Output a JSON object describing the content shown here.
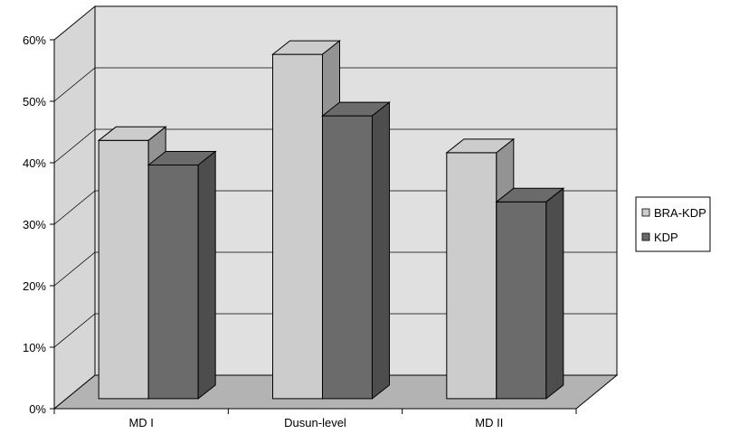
{
  "chart_data": {
    "type": "bar",
    "categories": [
      "MD I",
      "Dusun-level",
      "MD II"
    ],
    "series": [
      {
        "name": "BRA-KDP",
        "values": [
          42,
          56,
          40
        ],
        "color": "#cccccc"
      },
      {
        "name": "KDP",
        "values": [
          38,
          46,
          32
        ],
        "color": "#6b6b6b"
      }
    ],
    "ylim": [
      0,
      60
    ],
    "yticks": [
      "0%",
      "10%",
      "20%",
      "30%",
      "40%",
      "50%",
      "60%"
    ],
    "grid": true,
    "legend": "right",
    "style": "3d-clustered-column"
  }
}
